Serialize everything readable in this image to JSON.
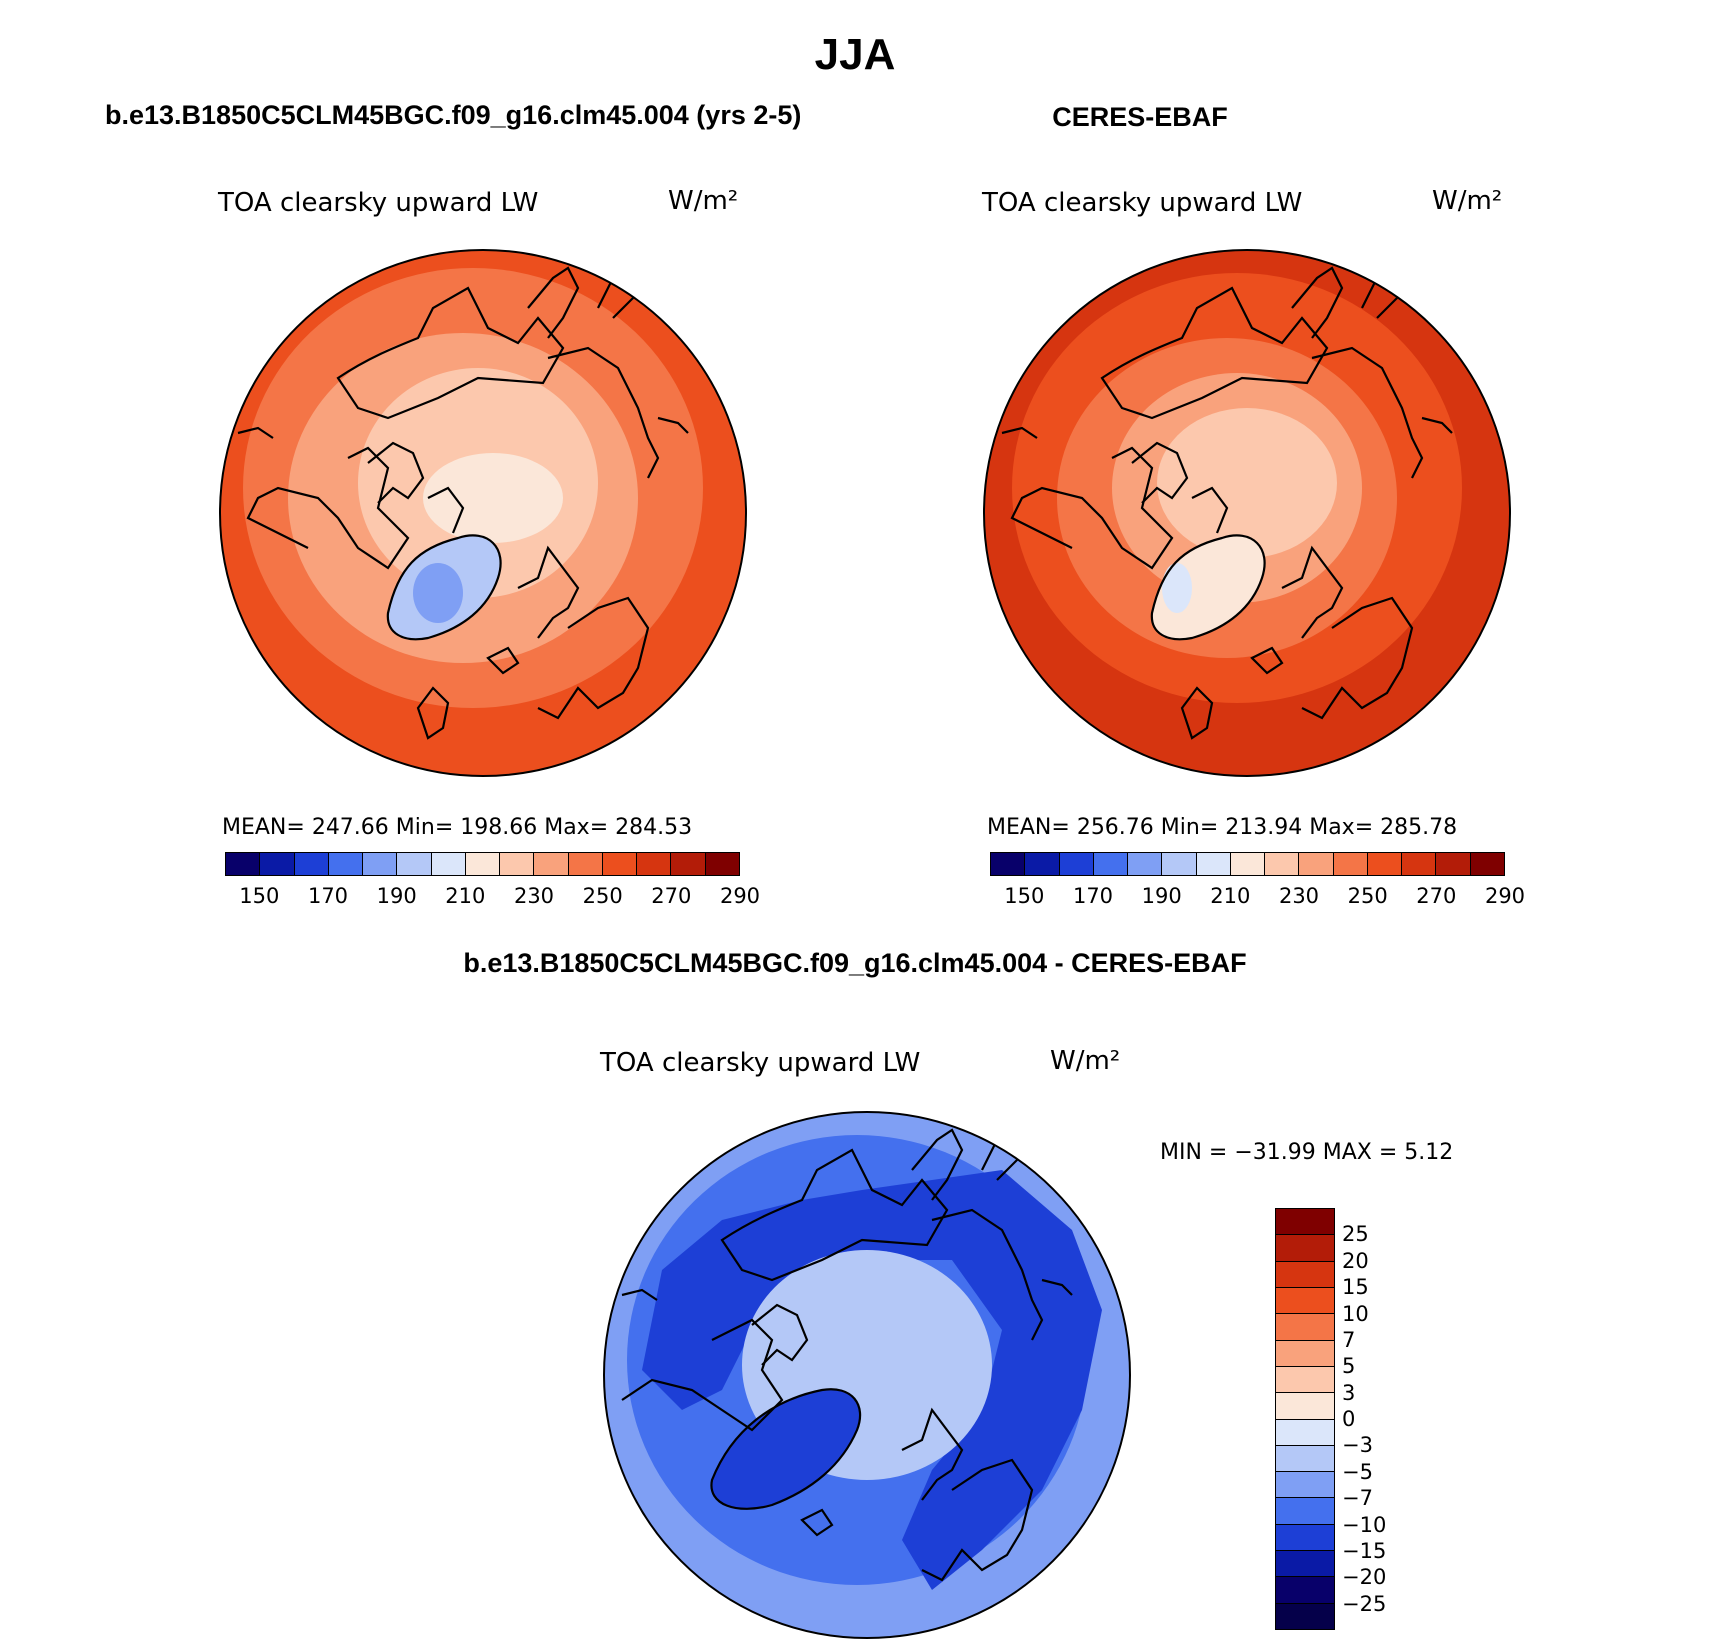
{
  "title": "JJA",
  "panels": {
    "model": {
      "header": "b.e13.B1850C5CLM45BGC.f09_g16.clm45.004 (yrs 2-5)",
      "variable": "TOA clearsky upward LW",
      "units": "W/m²",
      "stats_label": "MEAN=  247.66    Min=  198.66    Max=  284.53",
      "mean": 247.66,
      "min": 198.66,
      "max": 284.53
    },
    "obs": {
      "header": "CERES-EBAF",
      "variable": "TOA clearsky upward LW",
      "units": "W/m²",
      "stats_label": "MEAN=  256.76    Min=  213.94    Max=  285.78",
      "mean": 256.76,
      "min": 213.94,
      "max": 285.78
    },
    "diff": {
      "header": "b.e13.B1850C5CLM45BGC.f09_g16.clm45.004 - CERES-EBAF",
      "variable": "TOA clearsky upward LW",
      "units": "W/m²",
      "stats_label": "MIN = −31.99  MAX =     5.12",
      "min": -31.99,
      "max": 5.12
    }
  },
  "abs_colorbar": {
    "labels": [
      "150",
      "170",
      "190",
      "210",
      "230",
      "250",
      "270",
      "290"
    ],
    "colors": [
      "#08006a",
      "#0a1aa6",
      "#1d3fd6",
      "#4470ee",
      "#7f9ff4",
      "#b4c8f7",
      "#dbe6fa",
      "#fbe7d9",
      "#fcc8ad",
      "#f9a27c",
      "#f47547",
      "#ec4f1e",
      "#d63510",
      "#b31c08",
      "#7f0000"
    ]
  },
  "diff_colorbar": {
    "labels": [
      "25",
      "20",
      "15",
      "10",
      "7",
      "5",
      "3",
      "0",
      "−3",
      "−5",
      "−7",
      "−10",
      "−15",
      "−20",
      "−25"
    ],
    "colors": [
      "#7f0000",
      "#b31c08",
      "#d63510",
      "#ec4f1e",
      "#f47547",
      "#f9a27c",
      "#fcc8ad",
      "#fbe7d9",
      "#dbe6fa",
      "#b4c8f7",
      "#7f9ff4",
      "#4470ee",
      "#1d3fd6",
      "#0a1aa6",
      "#08006a",
      "#05004a"
    ]
  },
  "map_colors": {
    "model": {
      "ring1": "#ec4f1e",
      "ring2": "#f47547",
      "ring3": "#f9a27c",
      "ring4": "#fcc8ad",
      "center": "#fbe7d9",
      "greenland": "#b4c8f7",
      "greenland_core": "#7f9ff4"
    },
    "obs": {
      "ring1": "#d63510",
      "ring2": "#ec4f1e",
      "ring3": "#f47547",
      "ring4": "#f9a27c",
      "center": "#fcc8ad",
      "greenland": "#fbe7d9",
      "greenland_core": "#dbe6fa"
    },
    "diff": {
      "ring1": "#7f9ff4",
      "ring2": "#4470ee",
      "ring3": "#1d3fd6",
      "center": "#b4c8f7",
      "greenland": "#1d3fd6",
      "land": "#1d3fd6"
    }
  }
}
